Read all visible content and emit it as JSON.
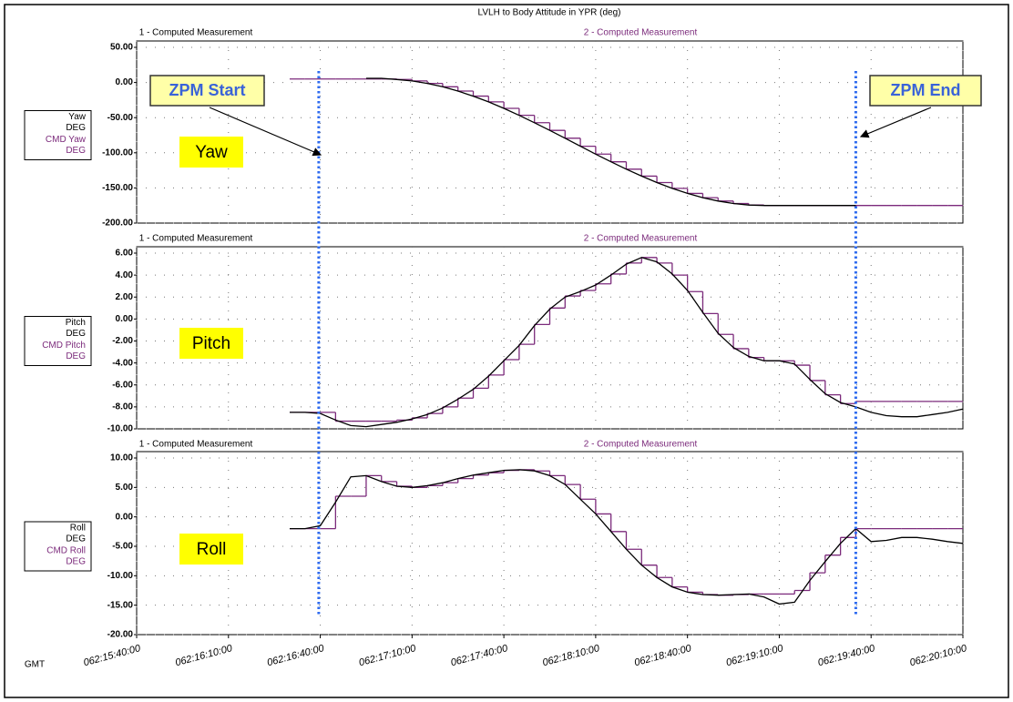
{
  "title": "LVLH to Body Attitude in YPR (deg)",
  "x_axis": {
    "label": "GMT",
    "xlim": [
      "062:15:40:00",
      "062:20:10:00"
    ],
    "xticks": [
      "062:15:40:00",
      "062:16:10:00",
      "062:16:40:00",
      "062:17:10:00",
      "062:17:40:00",
      "062:18:10:00",
      "062:18:40:00",
      "062:19:10:00",
      "062:19:40:00",
      "062:20:10:00"
    ]
  },
  "annotations": [
    {
      "text": "ZPM Start",
      "x": "062:16:39:30"
    },
    {
      "text": "ZPM End",
      "x": "062:19:35:00"
    }
  ],
  "chart_data": [
    {
      "type": "line",
      "label": "Yaw",
      "headers": [
        "1 - Computed Measurement",
        "2 - Computed Measurement"
      ],
      "grid": true,
      "xlim": [
        "062:15:40:00",
        "062:20:10:00"
      ],
      "x": [
        "062:16:30:00",
        "062:16:35:00",
        "062:16:40:00",
        "062:16:45:00",
        "062:16:50:00",
        "062:16:55:00",
        "062:17:00:00",
        "062:17:05:00",
        "062:17:10:00",
        "062:17:15:00",
        "062:17:20:00",
        "062:17:25:00",
        "062:17:30:00",
        "062:17:35:00",
        "062:17:40:00",
        "062:17:45:00",
        "062:17:50:00",
        "062:17:55:00",
        "062:18:00:00",
        "062:18:05:00",
        "062:18:10:00",
        "062:18:15:00",
        "062:18:20:00",
        "062:18:25:00",
        "062:18:30:00",
        "062:18:35:00",
        "062:18:40:00",
        "062:18:45:00",
        "062:18:50:00",
        "062:18:55:00",
        "062:19:00:00",
        "062:19:05:00",
        "062:19:10:00",
        "062:19:15:00",
        "062:19:20:00",
        "062:19:25:00",
        "062:19:30:00",
        "062:19:35:00",
        "062:19:40:00",
        "062:19:45:00",
        "062:19:50:00",
        "062:19:55:00",
        "062:20:00:00",
        "062:20:05:00",
        "062:20:10:00"
      ],
      "ylim": [
        -200,
        50
      ],
      "yticks": [
        {
          "value": 50,
          "label": "50.00"
        },
        {
          "value": 0,
          "label": "0.00"
        },
        {
          "value": -50,
          "label": "-50.00"
        },
        {
          "value": -100,
          "label": "-100.00"
        },
        {
          "value": -150,
          "label": "-150.00"
        },
        {
          "value": -200,
          "label": "-200.00"
        }
      ],
      "series": [
        {
          "name": "Yaw",
          "unit": "DEG",
          "color": "#000000",
          "step": false,
          "values": [
            null,
            null,
            null,
            null,
            null,
            6,
            6,
            4.3,
            2.2,
            -1.3,
            -6.1,
            -12.2,
            -19.4,
            -27.6,
            -36.8,
            -46.7,
            -57.2,
            -68.1,
            -79.3,
            -90.7,
            -101.9,
            -112.8,
            -123.3,
            -133.2,
            -142.4,
            -150.6,
            -157.8,
            -163.9,
            -168.7,
            -172.2,
            -174.3,
            -175,
            -175,
            -175,
            -175,
            -175,
            -175,
            -175,
            null,
            null,
            null,
            null,
            null,
            null,
            null
          ]
        },
        {
          "name": "CMD Yaw",
          "unit": "DEG",
          "color": "#7b2a7b",
          "step": true,
          "values": [
            5,
            5,
            5,
            5,
            5,
            5,
            5,
            4.3,
            2.2,
            -1.3,
            -6.1,
            -12.2,
            -19.4,
            -27.6,
            -36.8,
            -46.7,
            -57.2,
            -68.1,
            -79.3,
            -90.7,
            -101.9,
            -112.8,
            -123.3,
            -133.2,
            -142.4,
            -150.6,
            -157.8,
            -163.9,
            -168.7,
            -172.2,
            -174.3,
            -175,
            -175,
            -175,
            -175,
            -175,
            -175,
            -175,
            -175,
            -175,
            -175,
            -175,
            -175,
            -175,
            -175
          ]
        }
      ]
    },
    {
      "type": "line",
      "label": "Pitch",
      "headers": [
        "1 - Computed Measurement",
        "2 - Computed Measurement"
      ],
      "grid": true,
      "xlim": [
        "062:15:40:00",
        "062:20:10:00"
      ],
      "x": [
        "062:16:30:00",
        "062:16:35:00",
        "062:16:40:00",
        "062:16:45:00",
        "062:16:50:00",
        "062:16:55:00",
        "062:17:00:00",
        "062:17:05:00",
        "062:17:10:00",
        "062:17:15:00",
        "062:17:20:00",
        "062:17:25:00",
        "062:17:30:00",
        "062:17:35:00",
        "062:17:40:00",
        "062:17:45:00",
        "062:17:50:00",
        "062:17:55:00",
        "062:18:00:00",
        "062:18:05:00",
        "062:18:10:00",
        "062:18:15:00",
        "062:18:20:00",
        "062:18:25:00",
        "062:18:30:00",
        "062:18:35:00",
        "062:18:40:00",
        "062:18:45:00",
        "062:18:50:00",
        "062:18:55:00",
        "062:19:00:00",
        "062:19:05:00",
        "062:19:10:00",
        "062:19:15:00",
        "062:19:20:00",
        "062:19:25:00",
        "062:19:30:00",
        "062:19:35:00",
        "062:19:40:00",
        "062:19:45:00",
        "062:19:50:00",
        "062:19:55:00",
        "062:20:00:00",
        "062:20:05:00",
        "062:20:10:00"
      ],
      "ylim": [
        -10,
        6
      ],
      "yticks": [
        {
          "value": 6,
          "label": "6.00"
        },
        {
          "value": 4,
          "label": "4.00"
        },
        {
          "value": 2,
          "label": "2.00"
        },
        {
          "value": 0,
          "label": "0.00"
        },
        {
          "value": -2,
          "label": "-2.00"
        },
        {
          "value": -4,
          "label": "-4.00"
        },
        {
          "value": -6,
          "label": "-6.00"
        },
        {
          "value": -8,
          "label": "-8.00"
        },
        {
          "value": -10,
          "label": "-10.00"
        }
      ],
      "series": [
        {
          "name": "Pitch",
          "unit": "DEG",
          "color": "#000000",
          "step": false,
          "values": [
            -8.5,
            -8.5,
            -8.6,
            -9.2,
            -9.7,
            -9.8,
            -9.6,
            -9.4,
            -9.1,
            -8.7,
            -8.1,
            -7.3,
            -6.4,
            -5.2,
            -3.8,
            -2.4,
            -0.6,
            0.9,
            2.0,
            2.5,
            3.1,
            4.0,
            5.0,
            5.6,
            5.2,
            4.1,
            2.6,
            0.6,
            -1.3,
            -2.6,
            -3.4,
            -3.8,
            -3.8,
            -4.1,
            -5.5,
            -6.8,
            -7.6,
            -8.0,
            -8.5,
            -8.8,
            -8.9,
            -8.9,
            -8.7,
            -8.5,
            -8.2
          ]
        },
        {
          "name": "CMD Pitch",
          "unit": "DEG",
          "color": "#7b2a7b",
          "step": true,
          "values": [
            -8.5,
            -8.5,
            -8.5,
            -9.3,
            -9.3,
            -9.3,
            -9.3,
            -9.2,
            -9.0,
            -8.6,
            -8.0,
            -7.2,
            -6.3,
            -5.1,
            -3.7,
            -2.3,
            -0.5,
            1.0,
            2.1,
            2.6,
            3.2,
            4.1,
            5.1,
            5.6,
            5.1,
            4.0,
            2.5,
            0.5,
            -1.4,
            -2.7,
            -3.5,
            -3.8,
            -3.8,
            -4.2,
            -5.6,
            -6.9,
            -7.7,
            -7.5,
            -7.5,
            -7.5,
            -7.5,
            -7.5,
            -7.5,
            -7.5,
            -7.5
          ]
        }
      ]
    },
    {
      "type": "line",
      "label": "Roll",
      "headers": [
        "1 - Computed Measurement",
        "2 - Computed Measurement"
      ],
      "grid": true,
      "xlim": [
        "062:15:40:00",
        "062:20:10:00"
      ],
      "x": [
        "062:16:30:00",
        "062:16:35:00",
        "062:16:40:00",
        "062:16:45:00",
        "062:16:50:00",
        "062:16:55:00",
        "062:17:00:00",
        "062:17:05:00",
        "062:17:10:00",
        "062:17:15:00",
        "062:17:20:00",
        "062:17:25:00",
        "062:17:30:00",
        "062:17:35:00",
        "062:17:40:00",
        "062:17:45:00",
        "062:17:50:00",
        "062:17:55:00",
        "062:18:00:00",
        "062:18:05:00",
        "062:18:10:00",
        "062:18:15:00",
        "062:18:20:00",
        "062:18:25:00",
        "062:18:30:00",
        "062:18:35:00",
        "062:18:40:00",
        "062:18:45:00",
        "062:18:50:00",
        "062:18:55:00",
        "062:19:00:00",
        "062:19:05:00",
        "062:19:10:00",
        "062:19:15:00",
        "062:19:20:00",
        "062:19:25:00",
        "062:19:30:00",
        "062:19:35:00",
        "062:19:40:00",
        "062:19:45:00",
        "062:19:50:00",
        "062:19:55:00",
        "062:20:00:00",
        "062:20:05:00",
        "062:20:10:00"
      ],
      "ylim": [
        -20,
        10
      ],
      "yticks": [
        {
          "value": 10,
          "label": "10.00"
        },
        {
          "value": 5,
          "label": "5.00"
        },
        {
          "value": 0,
          "label": "0.00"
        },
        {
          "value": -5,
          "label": "-5.00"
        },
        {
          "value": -10,
          "label": "-10.00"
        },
        {
          "value": -15,
          "label": "-15.00"
        },
        {
          "value": -20,
          "label": "-20.00"
        }
      ],
      "series": [
        {
          "name": "Roll",
          "unit": "DEG",
          "color": "#000000",
          "step": false,
          "values": [
            -2.0,
            -2.0,
            -1.5,
            2.5,
            6.8,
            7.0,
            6.0,
            5.2,
            5.0,
            5.3,
            5.8,
            6.5,
            7.1,
            7.5,
            7.9,
            8.0,
            7.8,
            7.0,
            5.5,
            3.0,
            0.5,
            -2.5,
            -5.5,
            -8.2,
            -10.3,
            -11.9,
            -12.8,
            -13.2,
            -13.3,
            -13.2,
            -13.1,
            -13.6,
            -14.8,
            -14.5,
            -10.8,
            -7.6,
            -4.5,
            -2.0,
            -4.2,
            -4.0,
            -3.5,
            -3.5,
            -3.8,
            -4.2,
            -4.5
          ]
        },
        {
          "name": "CMD Roll",
          "unit": "DEG",
          "color": "#7b2a7b",
          "step": true,
          "values": [
            -2.0,
            -2.0,
            -2.0,
            3.5,
            3.5,
            7.0,
            6.0,
            5.2,
            5.0,
            5.3,
            5.8,
            6.5,
            7.1,
            7.5,
            7.9,
            8.0,
            7.8,
            7.0,
            5.5,
            3.0,
            0.5,
            -2.5,
            -5.5,
            -8.2,
            -10.3,
            -11.9,
            -12.8,
            -13.2,
            -13.3,
            -13.2,
            -13.1,
            -13.1,
            -13.1,
            -12.5,
            -9.5,
            -6.5,
            -3.5,
            -2.0,
            -2.0,
            -2.0,
            -2.0,
            -2.0,
            -2.0,
            -2.0,
            -2.0
          ]
        }
      ]
    }
  ]
}
